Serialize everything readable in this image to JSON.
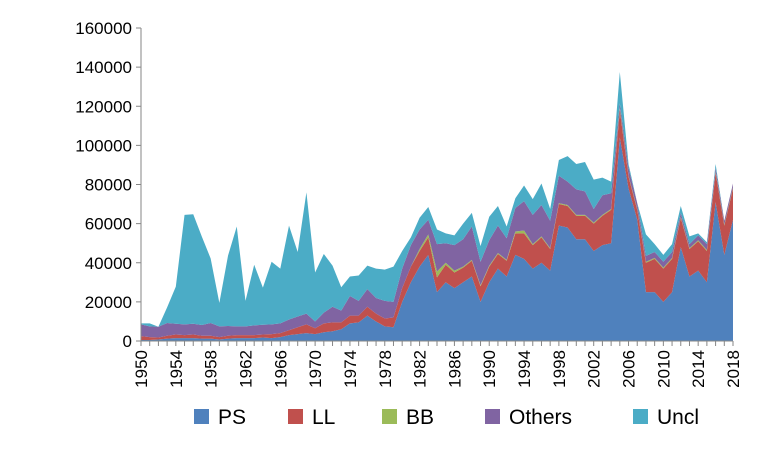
{
  "chart_data": {
    "type": "area",
    "stacked": true,
    "title": "",
    "xlabel": "",
    "ylabel": "",
    "ylim": [
      0,
      160000
    ],
    "y_ticks": [
      0,
      20000,
      40000,
      60000,
      80000,
      100000,
      120000,
      140000,
      160000
    ],
    "y_tick_labels": [
      "0",
      "20000",
      "40000",
      "60000",
      "80000",
      "100000",
      "120000",
      "140000",
      "160000"
    ],
    "x_tick_labels": [
      "1950",
      "1954",
      "1958",
      "1962",
      "1966",
      "1970",
      "1974",
      "1978",
      "1982",
      "1986",
      "1990",
      "1994",
      "1998",
      "2002",
      "2006",
      "2010",
      "2014",
      "2018"
    ],
    "x": [
      1950,
      1951,
      1952,
      1953,
      1954,
      1955,
      1956,
      1957,
      1958,
      1959,
      1960,
      1961,
      1962,
      1963,
      1964,
      1965,
      1966,
      1967,
      1968,
      1969,
      1970,
      1971,
      1972,
      1973,
      1974,
      1975,
      1976,
      1977,
      1978,
      1979,
      1980,
      1981,
      1982,
      1983,
      1984,
      1985,
      1986,
      1987,
      1988,
      1989,
      1990,
      1991,
      1992,
      1993,
      1994,
      1995,
      1996,
      1997,
      1998,
      1999,
      2000,
      2001,
      2002,
      2003,
      2004,
      2005,
      2006,
      2007,
      2008,
      2009,
      2010,
      2011,
      2012,
      2013,
      2014,
      2015,
      2016,
      2017,
      2018
    ],
    "grid": false,
    "legend": "bottom",
    "series": [
      {
        "name": "PS",
        "color": "#4F81BD",
        "values": [
          500,
          500,
          800,
          1200,
          1500,
          1500,
          1500,
          1200,
          1200,
          800,
          1200,
          1500,
          1500,
          1500,
          1800,
          1500,
          2000,
          3000,
          3500,
          4000,
          3500,
          4500,
          5000,
          6000,
          9000,
          9500,
          13000,
          10000,
          7500,
          7000,
          20000,
          30000,
          38000,
          44000,
          25000,
          30000,
          27000,
          30000,
          33000,
          20000,
          30000,
          37000,
          33000,
          44000,
          42000,
          37000,
          40000,
          36000,
          59000,
          58000,
          52000,
          52000,
          46000,
          49000,
          50000,
          104000,
          78000,
          62000,
          25000,
          25000,
          20000,
          25000,
          48000,
          33000,
          36000,
          30000,
          71000,
          44000,
          62000
        ]
      },
      {
        "name": "LL",
        "color": "#C0504D",
        "values": [
          2000,
          1500,
          1000,
          1500,
          1800,
          1500,
          1800,
          1500,
          1500,
          1200,
          1500,
          1500,
          1500,
          1500,
          1500,
          2000,
          2000,
          2500,
          3500,
          4500,
          3000,
          4500,
          4500,
          3500,
          4000,
          3500,
          4500,
          4000,
          4000,
          5000,
          7000,
          8000,
          8000,
          9000,
          7500,
          9000,
          8000,
          7500,
          8000,
          8000,
          8000,
          7500,
          8000,
          11000,
          13000,
          12000,
          13000,
          11000,
          11000,
          11000,
          12000,
          12000,
          14000,
          15000,
          17000,
          14000,
          6000,
          5000,
          15000,
          17000,
          17000,
          17000,
          15000,
          14000,
          15000,
          16000,
          15000,
          15000,
          16000
        ]
      },
      {
        "name": "BB",
        "color": "#9BBB59",
        "values": [
          0,
          0,
          0,
          0,
          0,
          0,
          0,
          0,
          0,
          0,
          0,
          0,
          0,
          0,
          0,
          0,
          0,
          0,
          0,
          0,
          0,
          0,
          0,
          0,
          0,
          0,
          0,
          0,
          0,
          0,
          0,
          0,
          1000,
          1500,
          3000,
          1000,
          1000,
          500,
          500,
          500,
          500,
          500,
          500,
          1000,
          1500,
          500,
          500,
          500,
          500,
          500,
          500,
          500,
          500,
          500,
          500,
          1000,
          500,
          500,
          500,
          500,
          500,
          500,
          500,
          500,
          500,
          500,
          500,
          500,
          500
        ]
      },
      {
        "name": "Others",
        "color": "#8064A2",
        "values": [
          6000,
          5500,
          5500,
          6500,
          5500,
          5500,
          5500,
          5500,
          6500,
          5500,
          5000,
          4500,
          4500,
          5000,
          5000,
          5000,
          5000,
          5500,
          5500,
          5500,
          3500,
          5500,
          8000,
          6000,
          10000,
          7500,
          9000,
          8000,
          9000,
          8000,
          10000,
          11000,
          10000,
          7500,
          14000,
          10000,
          13000,
          14000,
          17000,
          12000,
          13000,
          14000,
          11000,
          12000,
          15000,
          15000,
          16000,
          14000,
          14000,
          12000,
          13000,
          12000,
          7000,
          10000,
          8000,
          2500,
          4000,
          3000,
          3000,
          3000,
          3000,
          3000,
          2000,
          2000,
          2500,
          3000,
          2000,
          2000,
          2000
        ]
      },
      {
        "name": "Uncl",
        "color": "#4BACC6",
        "values": [
          500,
          1500,
          0,
          8000,
          19000,
          56000,
          56000,
          45000,
          33000,
          12000,
          36000,
          51000,
          13000,
          31000,
          19000,
          32000,
          28000,
          48000,
          33000,
          62000,
          25000,
          30000,
          21000,
          12000,
          10000,
          13000,
          12000,
          15000,
          16000,
          18000,
          9000,
          4000,
          6000,
          6500,
          7500,
          5000,
          5000,
          8000,
          7000,
          8000,
          12000,
          10000,
          6000,
          5000,
          8000,
          8000,
          11000,
          6000,
          8000,
          13000,
          13000,
          15000,
          15000,
          9000,
          6000,
          16000,
          2000,
          0,
          11000,
          4000,
          3500,
          4000,
          3500,
          4000,
          1000,
          1000,
          2000,
          0,
          0
        ]
      }
    ]
  }
}
